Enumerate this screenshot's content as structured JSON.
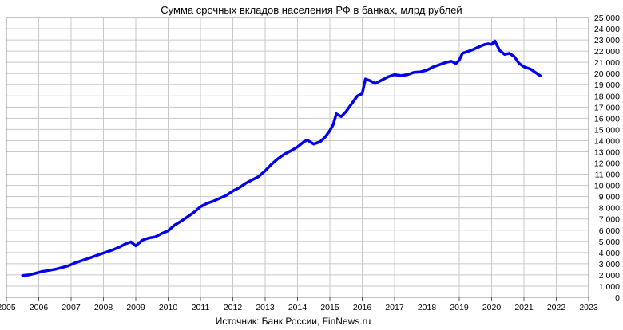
{
  "chart_data": {
    "type": "line",
    "title": "Сумма срочных вкладов населения РФ в банках, млрд рублей",
    "source": "Источник: Банк России, FinNews.ru",
    "xlabel": "",
    "ylabel": "",
    "xlim": [
      2005,
      2023
    ],
    "ylim": [
      0,
      25000
    ],
    "x_ticks": [
      "2005",
      "2006",
      "2007",
      "2008",
      "2009",
      "2010",
      "2011",
      "2012",
      "2013",
      "2014",
      "2015",
      "2016",
      "2017",
      "2018",
      "2019",
      "2020",
      "2021",
      "2022",
      "2023"
    ],
    "y_ticks": [
      "0",
      "1 000",
      "2 000",
      "3 000",
      "4 000",
      "5 000",
      "6 000",
      "7 000",
      "8 000",
      "9 000",
      "10 000",
      "11 000",
      "12 000",
      "13 000",
      "14 000",
      "15 000",
      "16 000",
      "17 000",
      "18 000",
      "19 000",
      "20 000",
      "21 000",
      "22 000",
      "23 000",
      "24 000",
      "25 000"
    ],
    "grid": true,
    "legend": "none",
    "colors": {
      "series": "#0000ee",
      "grid": "#c8c8c8"
    },
    "series": [
      {
        "x": [
          2005.5,
          2005.7,
          2005.9,
          2006.1,
          2006.3,
          2006.5,
          2006.7,
          2006.9,
          2007.1,
          2007.3,
          2007.5,
          2007.7,
          2007.9,
          2008.1,
          2008.3,
          2008.5,
          2008.7,
          2008.85,
          2009.0,
          2009.2,
          2009.4,
          2009.6,
          2009.8,
          2010.0,
          2010.2,
          2010.4,
          2010.6,
          2010.8,
          2011.0,
          2011.2,
          2011.4,
          2011.6,
          2011.8,
          2012.0,
          2012.2,
          2012.4,
          2012.6,
          2012.8,
          2013.0,
          2013.2,
          2013.4,
          2013.6,
          2013.8,
          2014.0,
          2014.2,
          2014.3,
          2014.5,
          2014.7,
          2014.85,
          2015.0,
          2015.1,
          2015.2,
          2015.35,
          2015.5,
          2015.7,
          2015.85,
          2016.0,
          2016.1,
          2016.25,
          2016.4,
          2016.6,
          2016.8,
          2017.0,
          2017.2,
          2017.4,
          2017.6,
          2017.8,
          2018.0,
          2018.2,
          2018.4,
          2018.6,
          2018.75,
          2018.9,
          2019.0,
          2019.1,
          2019.25,
          2019.4,
          2019.55,
          2019.7,
          2019.8,
          2019.9,
          2020.0,
          2020.1,
          2020.25,
          2020.4,
          2020.55,
          2020.7,
          2020.85,
          2021.0,
          2021.2,
          2021.35,
          2021.5
        ],
        "y": [
          1950,
          2000,
          2150,
          2300,
          2400,
          2500,
          2650,
          2800,
          3050,
          3250,
          3450,
          3650,
          3850,
          4050,
          4250,
          4500,
          4800,
          4950,
          4600,
          5100,
          5300,
          5400,
          5700,
          5950,
          6450,
          6800,
          7200,
          7600,
          8100,
          8400,
          8600,
          8850,
          9100,
          9500,
          9800,
          10200,
          10500,
          10800,
          11300,
          11900,
          12400,
          12800,
          13100,
          13450,
          13900,
          14050,
          13700,
          13900,
          14300,
          14900,
          15400,
          16400,
          16150,
          16600,
          17400,
          18000,
          18200,
          19500,
          19350,
          19100,
          19400,
          19700,
          19900,
          19800,
          19900,
          20100,
          20150,
          20300,
          20600,
          20800,
          21000,
          21100,
          20900,
          21200,
          21800,
          21950,
          22100,
          22300,
          22500,
          22600,
          22650,
          22600,
          22900,
          22050,
          21700,
          21800,
          21500,
          20900,
          20600,
          20400,
          20100,
          19800
        ]
      }
    ]
  }
}
